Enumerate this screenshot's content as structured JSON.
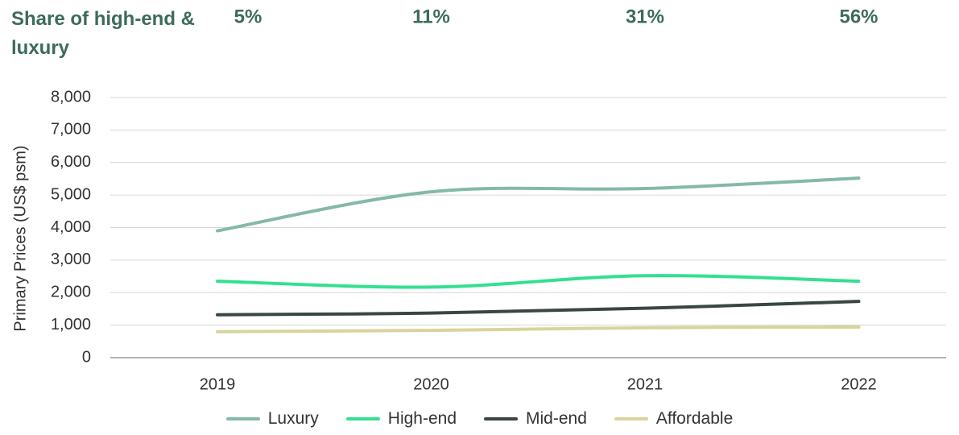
{
  "chart_data": {
    "type": "line",
    "title": "Share of high-end & luxury",
    "shares": {
      "values": [
        5,
        11,
        31,
        56
      ],
      "value_labels": [
        "5%",
        "11%",
        "31%",
        "56%"
      ]
    },
    "y_label": "Primary Prices  (US$ psm)",
    "categories": [
      "2019",
      "2020",
      "2021",
      "2022"
    ],
    "series": [
      {
        "name": "Luxury",
        "color": "#84b9a6",
        "values": [
          3900,
          5100,
          5200,
          5520
        ]
      },
      {
        "name": "High-end",
        "color": "#33e08f",
        "values": [
          2350,
          2170,
          2520,
          2350
        ]
      },
      {
        "name": "Mid-end",
        "color": "#3a4646",
        "values": [
          1320,
          1370,
          1520,
          1730
        ]
      },
      {
        "name": "Affordable",
        "color": "#d9d49c",
        "values": [
          800,
          840,
          920,
          940
        ]
      }
    ],
    "ylim": [
      0,
      8000
    ],
    "yticks": [
      {
        "value": 0,
        "label": "0"
      },
      {
        "value": 1000,
        "label": "1,000"
      },
      {
        "value": 2000,
        "label": "2,000"
      },
      {
        "value": 3000,
        "label": "3,000"
      },
      {
        "value": 4000,
        "label": "4,000"
      },
      {
        "value": 5000,
        "label": "5,000"
      },
      {
        "value": 6000,
        "label": "6,000"
      },
      {
        "value": 7000,
        "label": "7,000"
      },
      {
        "value": 8000,
        "label": "8,000"
      }
    ],
    "grid": true
  }
}
